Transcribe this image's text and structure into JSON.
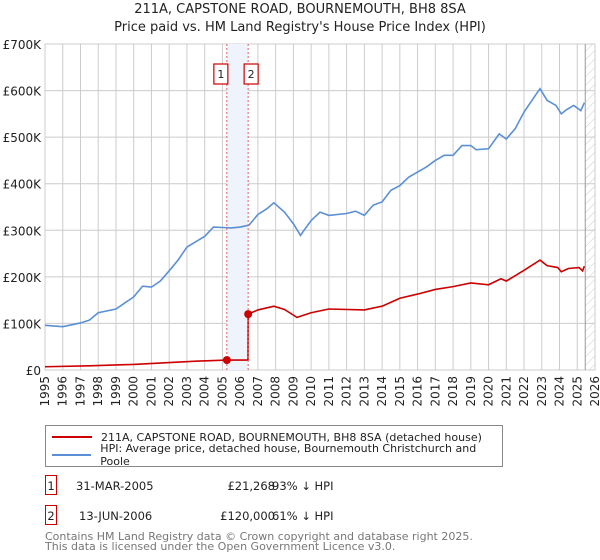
{
  "title_line1": "211A, CAPSTONE ROAD, BOURNEMOUTH, BH8 8SA",
  "title_line2": "Price paid vs. HM Land Registry's House Price Index (HPI)",
  "chart_data": {
    "type": "line",
    "xlim": [
      1995,
      2026
    ],
    "ylim": [
      0,
      700000
    ],
    "y_ticks": [
      0,
      100000,
      200000,
      300000,
      400000,
      500000,
      600000,
      700000
    ],
    "y_tick_labels": [
      "£0",
      "£100K",
      "£200K",
      "£300K",
      "£400K",
      "£500K",
      "£600K",
      "£700K"
    ],
    "x_ticks": [
      1995,
      1996,
      1997,
      1998,
      1999,
      2000,
      2001,
      2002,
      2003,
      2004,
      2005,
      2006,
      2007,
      2008,
      2009,
      2010,
      2011,
      2012,
      2013,
      2014,
      2015,
      2016,
      2017,
      2018,
      2019,
      2020,
      2021,
      2022,
      2023,
      2024,
      2025,
      2026
    ],
    "grid": true,
    "forecast_hatch_from": 2025.45,
    "series": [
      {
        "name": "211A, CAPSTONE ROAD, BOURNEMOUTH, BH8 8SA (detached house)",
        "color": "#cc0000",
        "points": [
          [
            1995,
            7000
          ],
          [
            1997.5,
            9000
          ],
          [
            2000,
            12000
          ],
          [
            2002,
            16000
          ],
          [
            2003.5,
            19000
          ],
          [
            2005.25,
            21268
          ],
          [
            2006.44,
            21268
          ],
          [
            2006.45,
            120000
          ],
          [
            2007,
            129000
          ],
          [
            2007.9,
            137000
          ],
          [
            2008.5,
            130000
          ],
          [
            2009.2,
            113000
          ],
          [
            2010,
            123000
          ],
          [
            2011,
            131000
          ],
          [
            2013,
            129000
          ],
          [
            2014,
            137000
          ],
          [
            2015,
            154000
          ],
          [
            2016,
            163000
          ],
          [
            2017,
            173000
          ],
          [
            2018,
            179000
          ],
          [
            2019,
            187000
          ],
          [
            2020,
            183000
          ],
          [
            2020.7,
            196000
          ],
          [
            2021,
            191000
          ],
          [
            2022,
            214000
          ],
          [
            2022.9,
            236000
          ],
          [
            2023.3,
            224000
          ],
          [
            2023.9,
            220000
          ],
          [
            2024.1,
            211000
          ],
          [
            2024.5,
            218000
          ],
          [
            2025.1,
            220000
          ],
          [
            2025.3,
            213000
          ],
          [
            2025.4,
            223000
          ]
        ]
      },
      {
        "name": "HPI: Average price, detached house, Bournemouth Christchurch and Poole",
        "color": "#5b8fd6",
        "points": [
          [
            1995,
            96000
          ],
          [
            1996,
            93000
          ],
          [
            1997,
            101000
          ],
          [
            1997.5,
            107000
          ],
          [
            1998,
            123000
          ],
          [
            1999,
            131000
          ],
          [
            2000,
            157000
          ],
          [
            2000.5,
            180000
          ],
          [
            2001,
            178000
          ],
          [
            2001.5,
            191000
          ],
          [
            2002,
            213000
          ],
          [
            2002.5,
            236000
          ],
          [
            2003,
            264000
          ],
          [
            2004,
            287000
          ],
          [
            2004.5,
            307000
          ],
          [
            2005,
            306000
          ],
          [
            2005.5,
            305000
          ],
          [
            2006,
            307000
          ],
          [
            2006.5,
            311000
          ],
          [
            2007,
            334000
          ],
          [
            2007.5,
            346000
          ],
          [
            2007.9,
            359000
          ],
          [
            2008.5,
            339000
          ],
          [
            2009,
            314000
          ],
          [
            2009.4,
            289000
          ],
          [
            2009.6,
            300000
          ],
          [
            2010,
            321000
          ],
          [
            2010.5,
            339000
          ],
          [
            2011,
            332000
          ],
          [
            2012,
            336000
          ],
          [
            2012.5,
            341000
          ],
          [
            2013,
            332000
          ],
          [
            2013.5,
            354000
          ],
          [
            2014,
            361000
          ],
          [
            2014.5,
            386000
          ],
          [
            2015,
            396000
          ],
          [
            2015.5,
            414000
          ],
          [
            2016,
            425000
          ],
          [
            2016.5,
            436000
          ],
          [
            2017,
            450000
          ],
          [
            2017.5,
            461000
          ],
          [
            2018,
            461000
          ],
          [
            2018.5,
            482000
          ],
          [
            2019,
            482000
          ],
          [
            2019.3,
            473000
          ],
          [
            2020,
            475000
          ],
          [
            2020.6,
            507000
          ],
          [
            2021,
            496000
          ],
          [
            2021.5,
            518000
          ],
          [
            2022,
            554000
          ],
          [
            2022.5,
            582000
          ],
          [
            2022.9,
            604000
          ],
          [
            2023.3,
            579000
          ],
          [
            2023.8,
            568000
          ],
          [
            2024.1,
            550000
          ],
          [
            2024.4,
            559000
          ],
          [
            2024.8,
            568000
          ],
          [
            2025.2,
            557000
          ],
          [
            2025.4,
            574000
          ]
        ]
      }
    ],
    "sales": [
      {
        "id": "1",
        "x": 2005.25,
        "date": "31-MAR-2005",
        "price": 21268,
        "price_label": "£21,268",
        "hpi_label": "93% ↓ HPI"
      },
      {
        "id": "2",
        "x": 2006.45,
        "date": "13-JUN-2006",
        "price": 120000,
        "price_label": "£120,000",
        "hpi_label": "61% ↓ HPI"
      }
    ]
  },
  "footer_line1": "Contains HM Land Registry data © Crown copyright and database right 2025.",
  "footer_line2": "This data is licensed under the Open Government Licence v3.0."
}
